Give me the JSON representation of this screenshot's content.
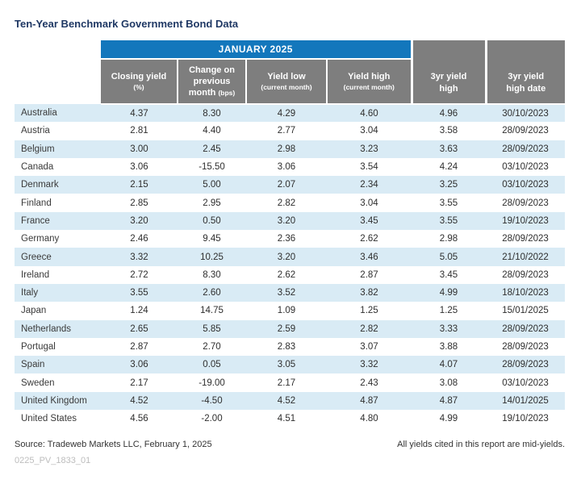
{
  "title": "Ten-Year Benchmark Government Bond Data",
  "colors": {
    "banner_blue": "#1377BC",
    "header_gray": "#7E7E7E",
    "stripe_blue": "#D9EBF5",
    "title_navy": "#1F3864"
  },
  "table": {
    "banner": "JANUARY 2025",
    "columns": [
      {
        "title": "Closing yield",
        "note": "(%)"
      },
      {
        "title": "Change on previous month",
        "note": "(bps)"
      },
      {
        "title": "Yield low",
        "note": "(current month)"
      },
      {
        "title": "Yield high",
        "note": "(current month)"
      },
      {
        "title": "3yr yield high",
        "note": ""
      },
      {
        "title": "3yr yield high date",
        "note": ""
      }
    ],
    "rows": [
      [
        "Australia",
        "4.37",
        "8.30",
        "4.29",
        "4.60",
        "4.96",
        "30/10/2023"
      ],
      [
        "Austria",
        "2.81",
        "4.40",
        "2.77",
        "3.04",
        "3.58",
        "28/09/2023"
      ],
      [
        "Belgium",
        "3.00",
        "2.45",
        "2.98",
        "3.23",
        "3.63",
        "28/09/2023"
      ],
      [
        "Canada",
        "3.06",
        "-15.50",
        "3.06",
        "3.54",
        "4.24",
        "03/10/2023"
      ],
      [
        "Denmark",
        "2.15",
        "5.00",
        "2.07",
        "2.34",
        "3.25",
        "03/10/2023"
      ],
      [
        "Finland",
        "2.85",
        "2.95",
        "2.82",
        "3.04",
        "3.55",
        "28/09/2023"
      ],
      [
        "France",
        "3.20",
        "0.50",
        "3.20",
        "3.45",
        "3.55",
        "19/10/2023"
      ],
      [
        "Germany",
        "2.46",
        "9.45",
        "2.36",
        "2.62",
        "2.98",
        "28/09/2023"
      ],
      [
        "Greece",
        "3.32",
        "10.25",
        "3.20",
        "3.46",
        "5.05",
        "21/10/2022"
      ],
      [
        "Ireland",
        "2.72",
        "8.30",
        "2.62",
        "2.87",
        "3.45",
        "28/09/2023"
      ],
      [
        "Italy",
        "3.55",
        "2.60",
        "3.52",
        "3.82",
        "4.99",
        "18/10/2023"
      ],
      [
        "Japan",
        "1.24",
        "14.75",
        "1.09",
        "1.25",
        "1.25",
        "15/01/2025"
      ],
      [
        "Netherlands",
        "2.65",
        "5.85",
        "2.59",
        "2.82",
        "3.33",
        "28/09/2023"
      ],
      [
        "Portugal",
        "2.87",
        "2.70",
        "2.83",
        "3.07",
        "3.88",
        "28/09/2023"
      ],
      [
        "Spain",
        "3.06",
        "0.05",
        "3.05",
        "3.32",
        "4.07",
        "28/09/2023"
      ],
      [
        "Sweden",
        "2.17",
        "-19.00",
        "2.17",
        "2.43",
        "3.08",
        "03/10/2023"
      ],
      [
        "United Kingdom",
        "4.52",
        "-4.50",
        "4.52",
        "4.87",
        "4.87",
        "14/01/2025"
      ],
      [
        "United States",
        "4.56",
        "-2.00",
        "4.51",
        "4.80",
        "4.99",
        "19/10/2023"
      ]
    ]
  },
  "footer": {
    "source": "Source: Tradeweb Markets LLC, February 1, 2025",
    "note": "All yields cited in this report are mid-yields.",
    "code": "0225_PV_1833_01"
  }
}
